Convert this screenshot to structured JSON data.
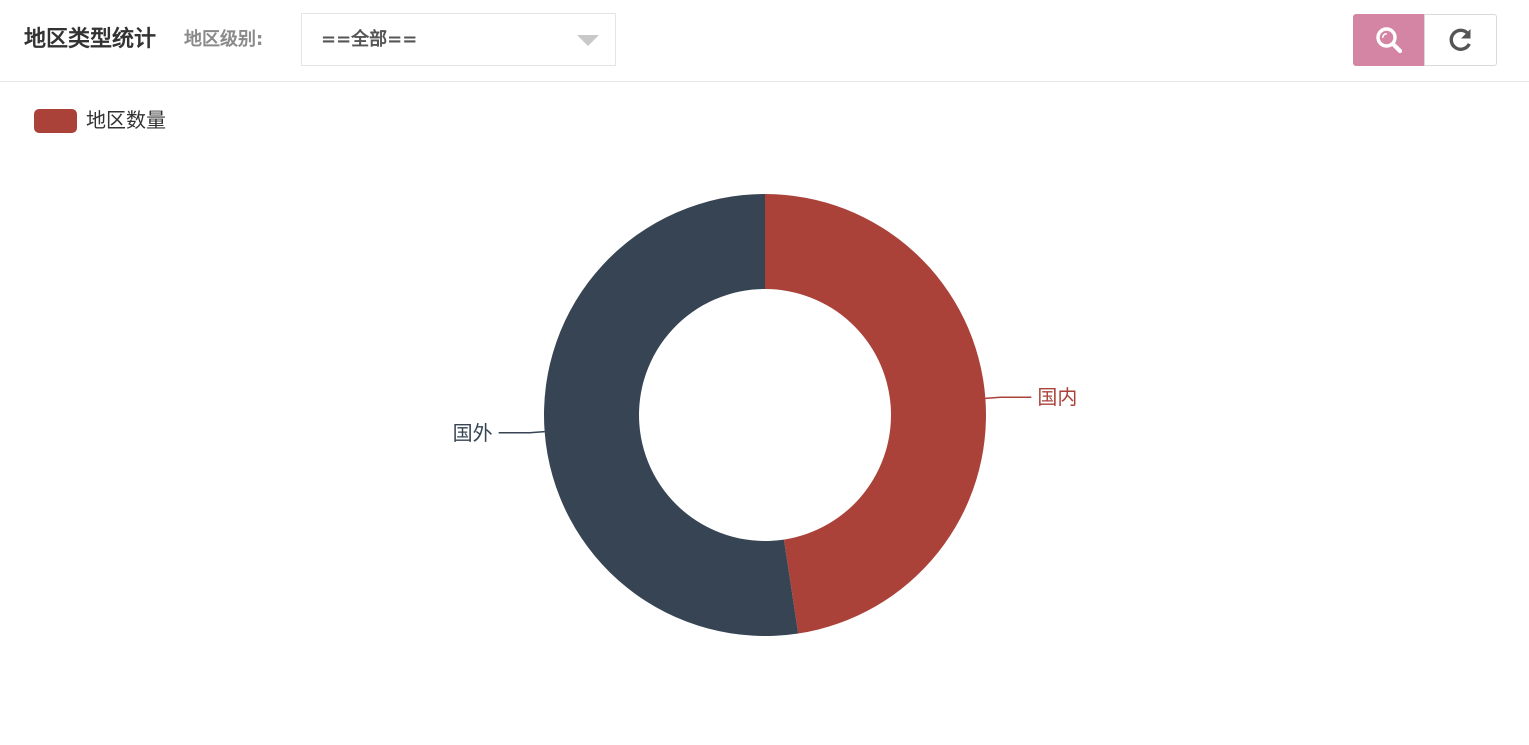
{
  "toolbar": {
    "title": "地区类型统计",
    "filter_label": "地区级别:",
    "select_value": "==全部==",
    "search_button": {
      "icon": "search-icon",
      "color": "#d485a4"
    },
    "refresh_button": {
      "icon": "refresh-icon"
    }
  },
  "legend": {
    "label": "地区数量",
    "color": "#ab423a"
  },
  "chart_data": {
    "type": "pie",
    "variant": "donut",
    "series": [
      {
        "name": "地区数量",
        "slices": [
          {
            "label": "国内",
            "value": 47.6,
            "color": "#ab423a"
          },
          {
            "label": "国外",
            "value": 52.4,
            "color": "#364453"
          }
        ]
      }
    ],
    "legend_position": "top-left",
    "grid": false
  }
}
